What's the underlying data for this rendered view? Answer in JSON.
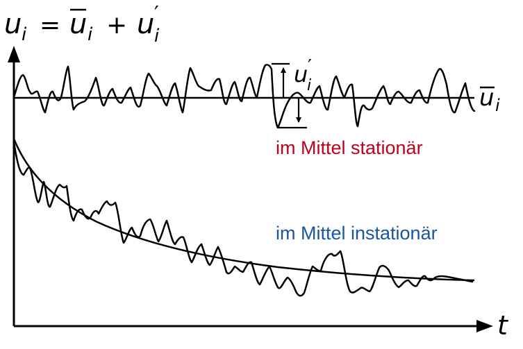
{
  "equation": {
    "u": "u",
    "i": "i",
    "equals": "=",
    "ubar": "u",
    "plus": "+",
    "uprime": "u",
    "prime": "′"
  },
  "mean_label": {
    "u": "u",
    "i": "i"
  },
  "fluct_label": {
    "u": "u",
    "i": "i",
    "prime": "′"
  },
  "t_label": "t",
  "stationary_label": "im Mittel stationär",
  "instationary_label": "im Mittel instationär",
  "colors": {
    "stationary": "#c0001a",
    "instationary": "#1b55a0",
    "ink": "#000000"
  }
}
